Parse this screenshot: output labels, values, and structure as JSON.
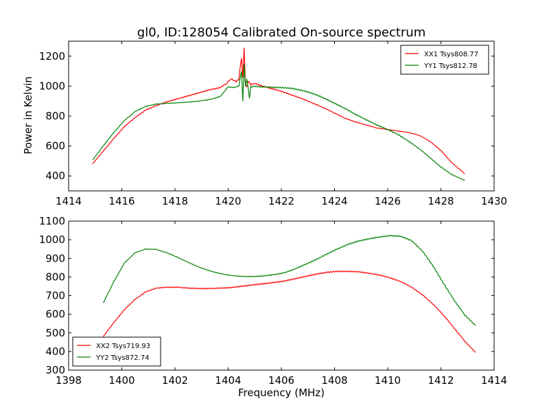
{
  "chart_data": [
    {
      "type": "line",
      "title": "gl0, ID:128054 Calibrated On-source spectrum",
      "xlabel": "",
      "ylabel": "Power in Kelvin",
      "xlim": [
        1414,
        1430
      ],
      "ylim": [
        300,
        1300
      ],
      "xticks": [
        1414,
        1416,
        1418,
        1420,
        1422,
        1424,
        1426,
        1428,
        1430
      ],
      "yticks": [
        400,
        600,
        800,
        1000,
        1200
      ],
      "legend_position": "top-right",
      "grid": false,
      "series": [
        {
          "name": "XX1 Tsys808.77",
          "color": "#ff0000",
          "x": [
            1414.9,
            1415.3,
            1415.7,
            1416.1,
            1416.5,
            1416.9,
            1417.3,
            1417.7,
            1418.1,
            1418.5,
            1418.9,
            1419.3,
            1419.7,
            1419.95,
            1420.1,
            1420.2,
            1420.3,
            1420.4,
            1420.5,
            1420.55,
            1420.6,
            1420.65,
            1420.7,
            1420.75,
            1420.85,
            1421.0,
            1421.2,
            1421.6,
            1422.0,
            1422.4,
            1422.8,
            1423.2,
            1423.6,
            1424.0,
            1424.4,
            1424.8,
            1425.2,
            1425.6,
            1426.0,
            1426.4,
            1426.8,
            1427.2,
            1427.6,
            1428.0,
            1428.4,
            1428.9
          ],
          "y": [
            480,
            565,
            650,
            730,
            790,
            840,
            870,
            895,
            915,
            935,
            955,
            975,
            990,
            1020,
            1050,
            1040,
            1030,
            1045,
            1190,
            1060,
            1260,
            1010,
            1000,
            1035,
            1010,
            1020,
            1005,
            985,
            965,
            940,
            915,
            885,
            855,
            820,
            785,
            760,
            740,
            720,
            710,
            700,
            690,
            670,
            630,
            570,
            490,
            415
          ]
        },
        {
          "name": "YY1 Tsys812.78",
          "color": "#008000",
          "x": [
            1414.9,
            1415.3,
            1415.7,
            1416.1,
            1416.5,
            1416.9,
            1417.3,
            1417.7,
            1418.1,
            1418.5,
            1418.9,
            1419.3,
            1419.7,
            1420.0,
            1420.2,
            1420.4,
            1420.5,
            1420.55,
            1420.6,
            1420.65,
            1420.7,
            1420.8,
            1420.85,
            1420.9,
            1421.0,
            1421.2,
            1421.6,
            1422.0,
            1422.4,
            1422.8,
            1423.2,
            1423.6,
            1424.0,
            1424.4,
            1424.8,
            1425.2,
            1425.6,
            1426.0,
            1426.4,
            1426.8,
            1427.2,
            1427.6,
            1428.0,
            1428.4,
            1428.9
          ],
          "y": [
            505,
            600,
            690,
            770,
            830,
            865,
            880,
            885,
            888,
            893,
            900,
            910,
            930,
            995,
            990,
            1000,
            1100,
            900,
            1150,
            1000,
            1050,
            920,
            1000,
            995,
            1000,
            995,
            993,
            990,
            985,
            970,
            950,
            920,
            885,
            850,
            810,
            775,
            740,
            710,
            675,
            630,
            580,
            520,
            460,
            410,
            370
          ]
        }
      ]
    },
    {
      "type": "line",
      "title": "",
      "xlabel": "Frequency (MHz)",
      "ylabel": "",
      "xlim": [
        1398,
        1414
      ],
      "ylim": [
        300,
        1100
      ],
      "xticks": [
        1398,
        1400,
        1402,
        1404,
        1406,
        1408,
        1410,
        1412,
        1414
      ],
      "yticks": [
        300,
        400,
        500,
        600,
        700,
        800,
        900,
        1000,
        1100
      ],
      "legend_position": "bottom-left",
      "grid": false,
      "series": [
        {
          "name": "XX2 Tsys719.93",
          "color": "#ff0000",
          "x": [
            1399.3,
            1399.7,
            1400.1,
            1400.5,
            1400.9,
            1401.3,
            1401.7,
            1402.1,
            1402.5,
            1402.9,
            1403.3,
            1403.7,
            1404.1,
            1404.5,
            1404.9,
            1405.3,
            1405.7,
            1406.1,
            1406.5,
            1406.9,
            1407.3,
            1407.7,
            1408.1,
            1408.5,
            1408.9,
            1409.3,
            1409.7,
            1410.1,
            1410.5,
            1410.9,
            1411.3,
            1411.7,
            1412.1,
            1412.5,
            1412.9,
            1413.3
          ],
          "y": [
            480,
            555,
            625,
            680,
            720,
            740,
            745,
            745,
            740,
            738,
            738,
            740,
            743,
            750,
            757,
            763,
            770,
            778,
            790,
            803,
            815,
            825,
            830,
            830,
            828,
            820,
            810,
            795,
            775,
            745,
            705,
            655,
            595,
            525,
            455,
            395
          ]
        },
        {
          "name": "YY2 Tsys872.74",
          "color": "#008000",
          "x": [
            1399.3,
            1399.7,
            1400.1,
            1400.5,
            1400.9,
            1401.3,
            1401.7,
            1402.1,
            1402.5,
            1402.9,
            1403.3,
            1403.7,
            1404.1,
            1404.5,
            1404.9,
            1405.3,
            1405.7,
            1406.1,
            1406.5,
            1406.9,
            1407.3,
            1407.7,
            1408.1,
            1408.5,
            1408.9,
            1409.3,
            1409.7,
            1410.1,
            1410.5,
            1410.9,
            1411.3,
            1411.7,
            1412.1,
            1412.5,
            1412.9,
            1413.3
          ],
          "y": [
            660,
            775,
            875,
            930,
            950,
            948,
            930,
            905,
            878,
            853,
            833,
            818,
            808,
            803,
            802,
            805,
            812,
            822,
            842,
            867,
            893,
            922,
            950,
            975,
            993,
            1005,
            1015,
            1022,
            1018,
            995,
            940,
            860,
            765,
            675,
            595,
            540
          ]
        }
      ]
    }
  ]
}
